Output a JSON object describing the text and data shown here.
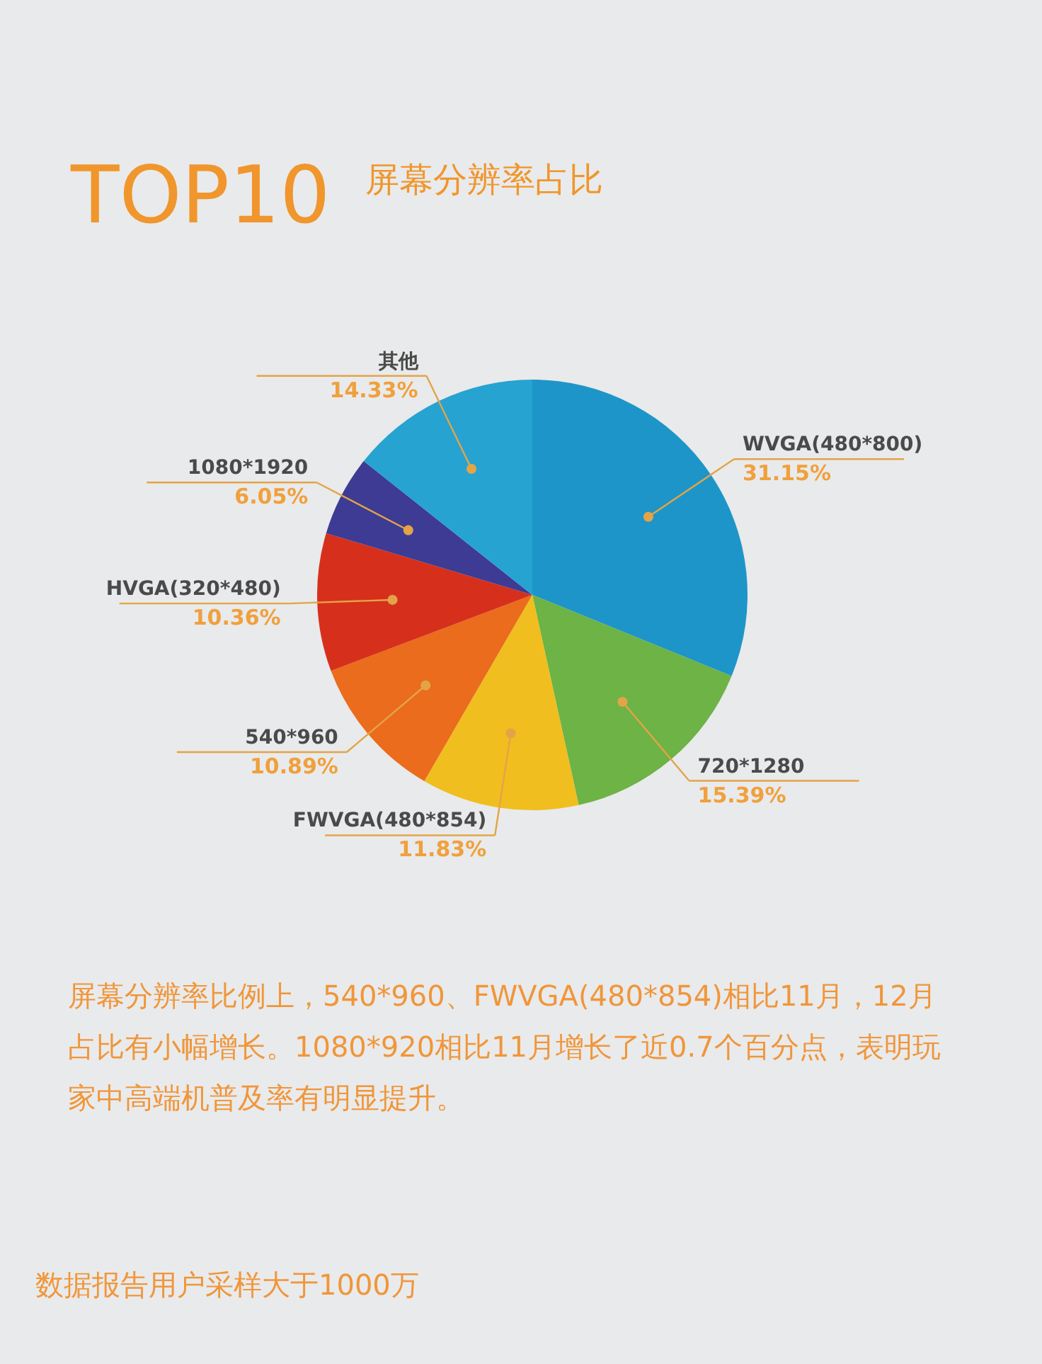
{
  "chart_data": {
    "type": "pie",
    "title": "TOP10",
    "subtitle": "屏幕分辨率占比",
    "categories": [
      "WVGA(480*800)",
      "720*1280",
      "FWVGA(480*854)",
      "540*960",
      "HVGA(320*480)",
      "1080*1920",
      "其他"
    ],
    "values": [
      31.15,
      15.39,
      11.83,
      10.89,
      10.36,
      6.05,
      14.33
    ],
    "colors": [
      "#1e95c8",
      "#6db345",
      "#f0be1e",
      "#ea6c1c",
      "#d6301c",
      "#3d3b93",
      "#26a3d1"
    ],
    "value_labels": [
      "31.15%",
      "15.39%",
      "11.83%",
      "10.89%",
      "10.36%",
      "6.05%",
      "14.33%"
    ],
    "annotations": [
      "屏幕分辨率比例上，540*960、FWVGA(480*854)相比11月，12月占比有小幅增长。1080*920相比11月增长了近0.7个百分点，表明玩家中高端机普及率有明显提升。",
      "数据报告用户采样大于1000万"
    ]
  }
}
